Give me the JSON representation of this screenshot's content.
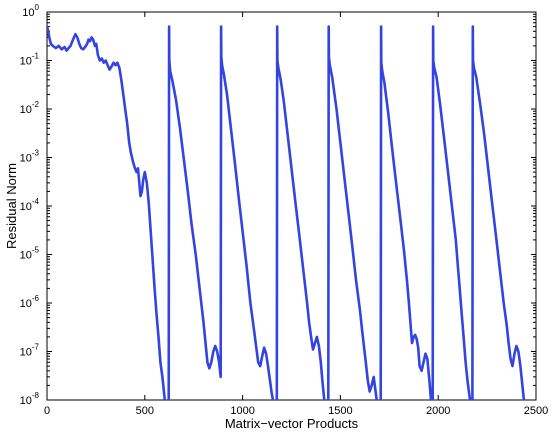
{
  "chart_data": {
    "type": "line",
    "xlabel": "Matrix−vector Products",
    "ylabel": "Residual Norm",
    "xlim": [
      0,
      2500
    ],
    "ylim": [
      1e-08,
      1
    ],
    "y_scale": "log",
    "grid": false,
    "line_color": "#3344e0",
    "x_ticks": [
      0,
      500,
      1000,
      1500,
      2000,
      2500
    ],
    "x_tick_labels": [
      "0",
      "500",
      "1000",
      "1500",
      "2000",
      "2500"
    ],
    "y_ticks": [
      {
        "value": 1e-08,
        "base": "10",
        "exp": "-8"
      },
      {
        "value": 1e-07,
        "base": "10",
        "exp": "-7"
      },
      {
        "value": 1e-06,
        "base": "10",
        "exp": "-6"
      },
      {
        "value": 1e-05,
        "base": "10",
        "exp": "-5"
      },
      {
        "value": 0.0001,
        "base": "10",
        "exp": "-4"
      },
      {
        "value": 0.001,
        "base": "10",
        "exp": "-3"
      },
      {
        "value": 0.01,
        "base": "10",
        "exp": "-2"
      },
      {
        "value": 0.1,
        "base": "10",
        "exp": "-1"
      },
      {
        "value": 1,
        "base": "10",
        "exp": "0"
      }
    ],
    "series": [
      {
        "x": [
          0,
          5,
          12,
          20,
          30,
          45,
          60,
          75,
          90,
          100,
          110,
          120,
          130,
          138,
          145,
          155,
          165,
          175,
          185,
          195,
          205,
          212,
          220,
          228,
          236,
          245,
          252,
          260,
          270,
          280,
          290,
          300,
          310,
          320,
          330,
          340,
          350,
          360,
          370,
          380,
          390,
          400,
          410,
          420,
          430,
          440,
          450,
          458,
          465,
          472,
          478,
          485,
          492,
          500,
          510,
          520,
          530,
          540,
          550,
          560,
          570,
          580,
          590,
          600,
          610,
          618,
          622,
          624,
          625,
          630,
          640,
          650,
          660,
          680,
          700,
          720,
          740,
          760,
          780,
          800,
          820,
          830,
          840,
          850,
          860,
          870,
          880,
          888,
          890,
          891,
          895,
          905,
          920,
          940,
          960,
          980,
          1000,
          1020,
          1040,
          1060,
          1070,
          1080,
          1090,
          1100,
          1110,
          1120,
          1130,
          1140,
          1150,
          1160,
          1170,
          1175,
          1177,
          1178,
          1183,
          1195,
          1210,
          1230,
          1250,
          1270,
          1290,
          1310,
          1330,
          1340,
          1350,
          1360,
          1370,
          1380,
          1390,
          1400,
          1410,
          1420,
          1428,
          1435,
          1438,
          1440,
          1441,
          1446,
          1458,
          1480,
          1500,
          1520,
          1540,
          1560,
          1580,
          1600,
          1610,
          1620,
          1630,
          1640,
          1650,
          1660,
          1670,
          1680,
          1690,
          1700,
          1706,
          1708,
          1709,
          1714,
          1725,
          1745,
          1765,
          1785,
          1805,
          1825,
          1840,
          1850,
          1858,
          1866,
          1874,
          1882,
          1890,
          1898,
          1905,
          1915,
          1925,
          1935,
          1945,
          1955,
          1965,
          1972,
          1974,
          1975,
          1980,
          1992,
          2010,
          2030,
          2050,
          2070,
          2090,
          2100,
          2110,
          2120,
          2130,
          2140,
          2150,
          2160,
          2170,
          2175,
          2177,
          2178,
          2183,
          2195,
          2215,
          2235,
          2255,
          2275,
          2295,
          2315,
          2335,
          2350,
          2360,
          2370,
          2380,
          2390,
          2400,
          2410,
          2420,
          2428,
          2436,
          2445
        ],
        "y": [
          0.5,
          0.42,
          0.3,
          0.22,
          0.2,
          0.18,
          0.2,
          0.17,
          0.19,
          0.16,
          0.18,
          0.2,
          0.25,
          0.3,
          0.35,
          0.3,
          0.22,
          0.18,
          0.17,
          0.19,
          0.22,
          0.27,
          0.25,
          0.3,
          0.27,
          0.2,
          0.22,
          0.13,
          0.1,
          0.11,
          0.09,
          0.1,
          0.08,
          0.065,
          0.075,
          0.09,
          0.08,
          0.09,
          0.07,
          0.04,
          0.02,
          0.01,
          0.005,
          0.002,
          0.0012,
          0.0008,
          0.0006,
          0.0005,
          0.0006,
          0.0003,
          0.00016,
          0.0002,
          0.00035,
          0.0005,
          0.0003,
          0.00012,
          3e-05,
          8e-06,
          2e-06,
          6e-07,
          2e-07,
          6e-08,
          3e-08,
          1.2e-08,
          5e-09,
          4e-09,
          5e-09,
          0.5,
          0.1,
          0.06,
          0.04,
          0.025,
          0.015,
          0.004,
          0.0009,
          0.0002,
          4e-05,
          1e-05,
          2e-06,
          4e-07,
          6e-08,
          4.5e-08,
          6e-08,
          1e-07,
          1.3e-07,
          1e-07,
          6e-08,
          3e-08,
          0.5,
          0.12,
          0.08,
          0.05,
          0.02,
          0.004,
          0.0008,
          0.00015,
          3e-05,
          6e-06,
          1e-06,
          2.5e-07,
          1.2e-07,
          6e-08,
          5e-08,
          8e-08,
          1.2e-07,
          9e-08,
          5e-08,
          2.5e-08,
          1.3e-08,
          8e-09,
          5e-09,
          4e-09,
          0.5,
          0.1,
          0.07,
          0.04,
          0.015,
          0.003,
          0.0006,
          0.00012,
          2.5e-05,
          5e-06,
          1e-06,
          4e-07,
          2e-07,
          1.1e-07,
          1.5e-07,
          2e-07,
          1.3e-07,
          6e-08,
          2e-08,
          8e-09,
          5e-09,
          6e-09,
          5e-09,
          0.5,
          0.12,
          0.08,
          0.045,
          0.01,
          0.002,
          0.0004,
          8e-05,
          1.6e-05,
          3e-06,
          7e-07,
          3e-07,
          1.3e-07,
          6e-08,
          2.5e-08,
          1.5e-08,
          2e-08,
          3e-08,
          1.5e-08,
          7e-09,
          4e-09,
          4e-09,
          0.5,
          0.09,
          0.06,
          0.035,
          0.008,
          0.0015,
          0.0003,
          6e-05,
          1.2e-05,
          3e-06,
          1e-06,
          4e-07,
          1.5e-07,
          2e-07,
          2.2e-07,
          1.8e-07,
          1.2e-07,
          5e-08,
          4e-08,
          6e-08,
          9e-08,
          7e-08,
          2.5e-08,
          8e-09,
          5e-09,
          0.5,
          0.1,
          0.07,
          0.045,
          0.012,
          0.0025,
          0.0005,
          0.0001,
          2e-05,
          6e-06,
          2e-06,
          6e-07,
          2e-07,
          6e-08,
          2.5e-08,
          1.2e-08,
          6e-09,
          5e-09,
          0.5,
          0.1,
          0.07,
          0.045,
          0.012,
          0.003,
          0.0006,
          0.00012,
          2.5e-05,
          5e-06,
          1e-06,
          3.5e-07,
          1.5e-07,
          7e-08,
          5e-08,
          9e-08,
          1.3e-07,
          1e-07,
          5e-08,
          2.5e-08,
          1.2e-08,
          6e-09
        ]
      }
    ]
  }
}
